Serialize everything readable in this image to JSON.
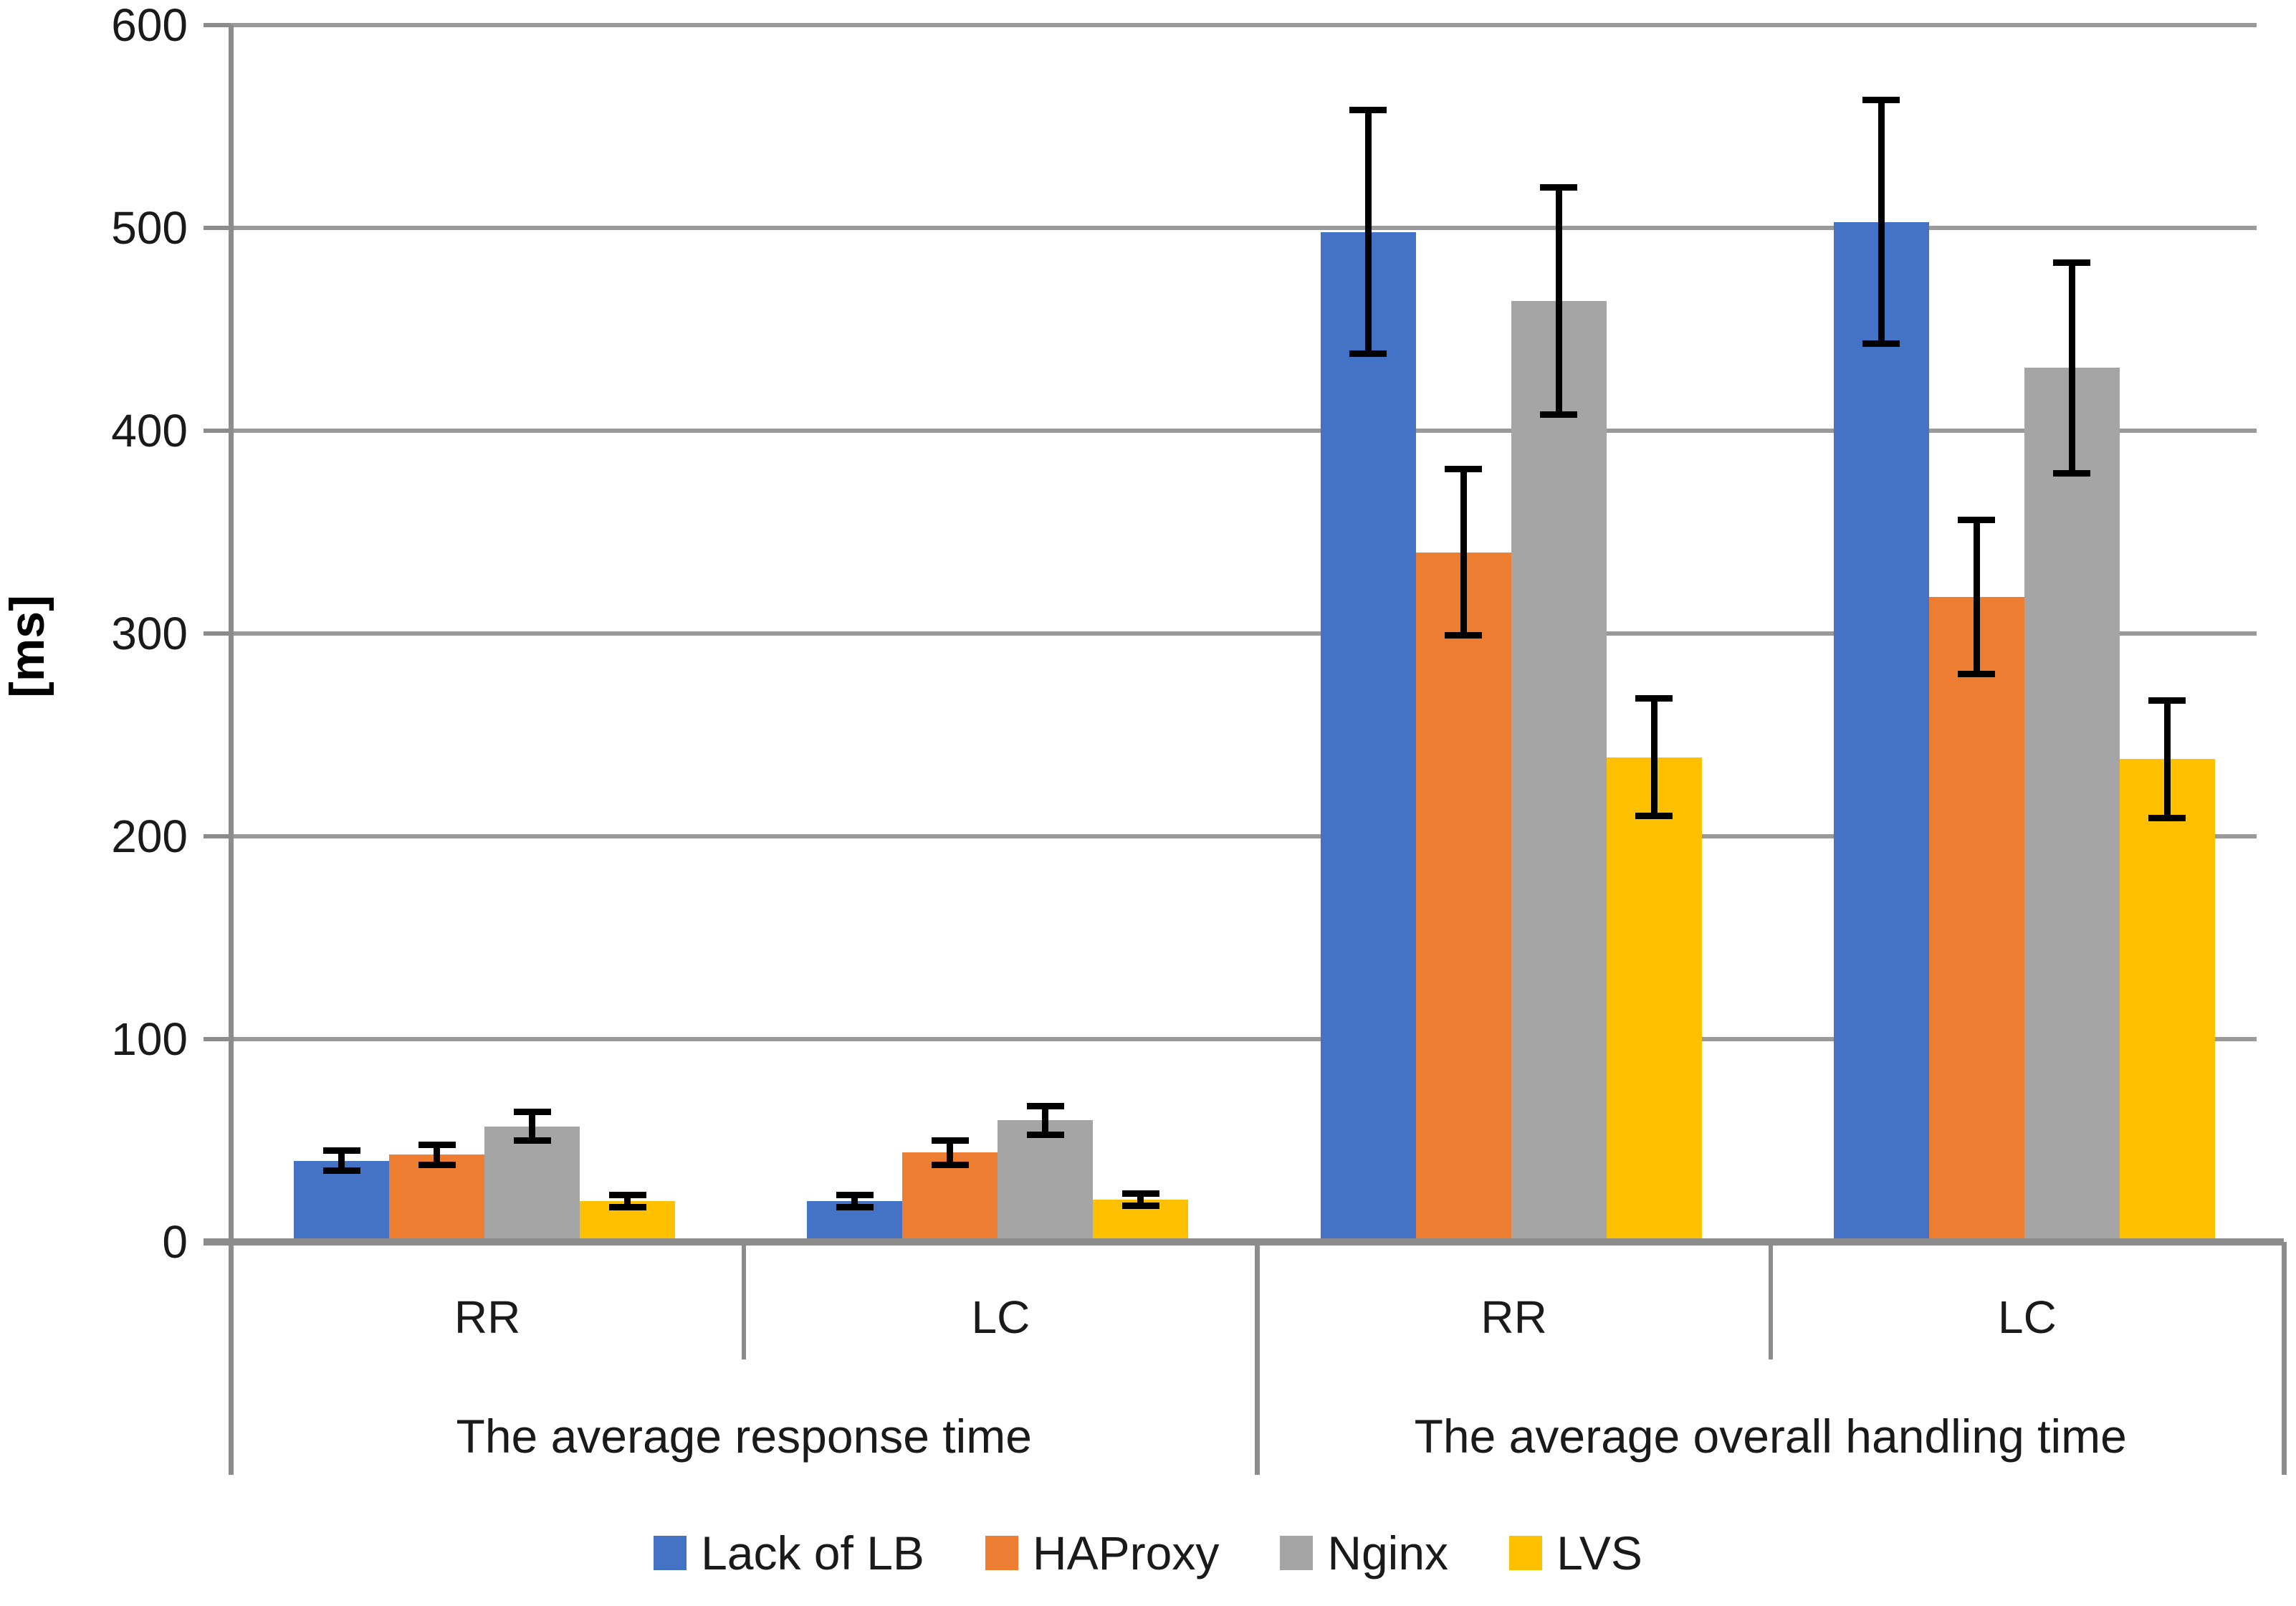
{
  "chart_data": {
    "type": "bar",
    "title": "",
    "ylabel": "[ms]",
    "xlabel": "",
    "ylim": [
      0,
      600
    ],
    "yticks": [
      0,
      100,
      200,
      300,
      400,
      500,
      600
    ],
    "grid": true,
    "legend_position": "bottom",
    "error_bars": true,
    "groups": [
      {
        "label": "The average response time",
        "categories": [
          "RR",
          "LC"
        ]
      },
      {
        "label": "The average overall handling time",
        "categories": [
          "RR",
          "LC"
        ]
      }
    ],
    "category_order_note": "values arrays are ordered: [response-RR, response-LC, overall-RR, overall-LC]",
    "series": [
      {
        "name": "Lack of LB",
        "color": "#4472C4",
        "values": [
          40,
          20,
          498,
          503
        ],
        "errors": [
          5,
          3,
          60,
          60
        ]
      },
      {
        "name": "HAProxy",
        "color": "#ED7D31",
        "values": [
          43,
          44,
          340,
          318
        ],
        "errors": [
          5,
          6,
          41,
          38
        ]
      },
      {
        "name": "Nginx",
        "color": "#A5A5A5",
        "values": [
          57,
          60,
          464,
          431
        ],
        "errors": [
          7,
          7,
          56,
          52
        ]
      },
      {
        "name": "LVS",
        "color": "#FFC000",
        "values": [
          20,
          21,
          239,
          238
        ],
        "errors": [
          3,
          3,
          29,
          29
        ]
      }
    ]
  },
  "colors": {
    "axis": "#8c8c8c",
    "gridline": "#9a9a9a",
    "error_bar": "#000000",
    "text": "#1a1a1a",
    "background": "#ffffff"
  }
}
